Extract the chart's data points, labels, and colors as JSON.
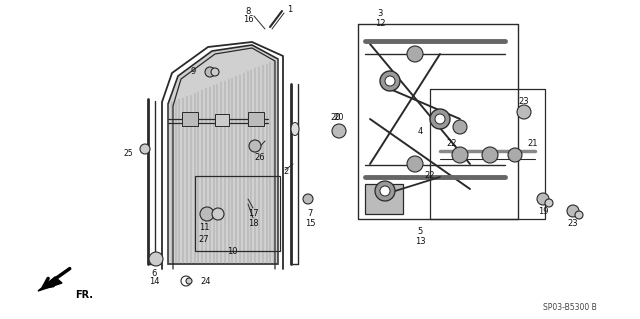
{
  "bg_color": "#ffffff",
  "line_color": "#2a2a2a",
  "label_color": "#111111",
  "diagram_code": "SP03-B5300 B",
  "figsize": [
    6.4,
    3.19
  ],
  "dpi": 100,
  "xlim": [
    0,
    640
  ],
  "ylim": [
    0,
    319
  ]
}
